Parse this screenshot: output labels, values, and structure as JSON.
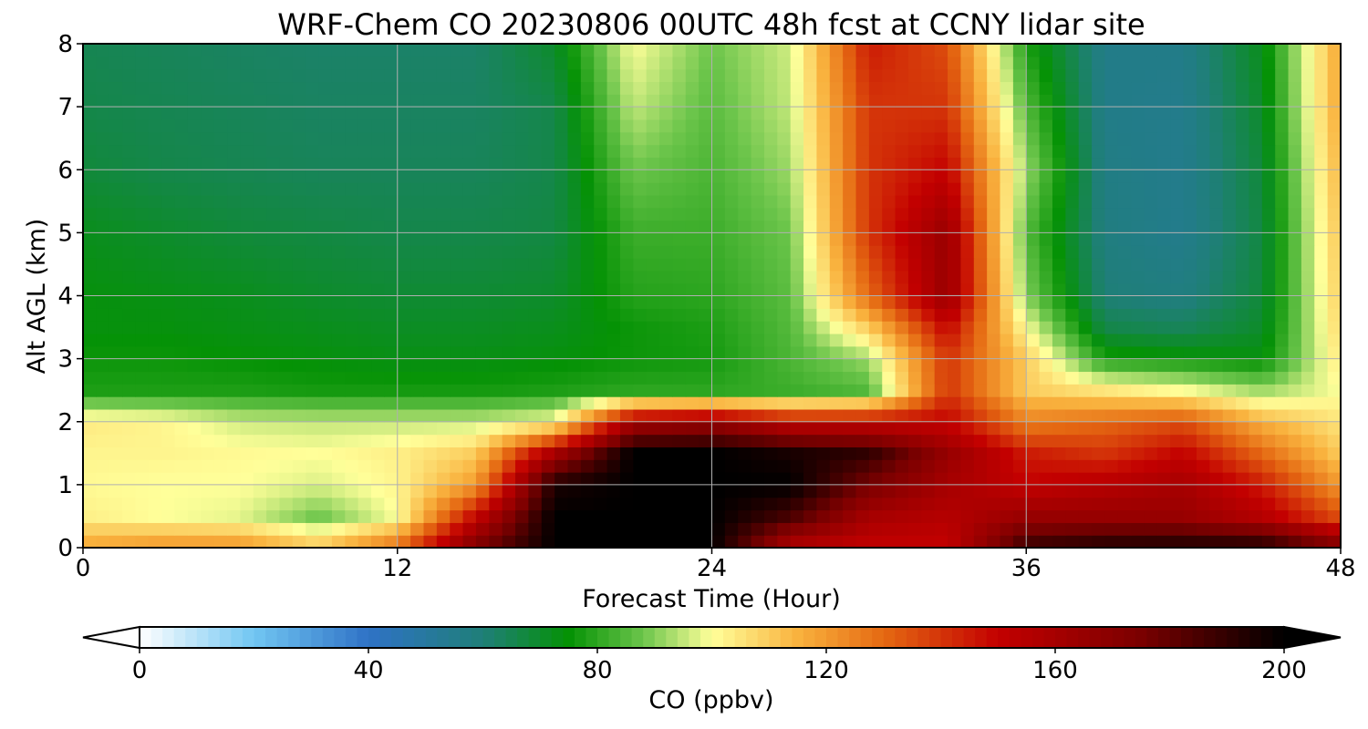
{
  "chart_data": {
    "type": "heatmap",
    "title": "WRF-Chem CO  20230806 00UTC 48h fcst at CCNY lidar site",
    "xlabel": "Forecast Time (Hour)",
    "ylabel": "Alt AGL (km)",
    "xlim": [
      0,
      48
    ],
    "ylim": [
      0,
      8
    ],
    "xticks": [
      0,
      12,
      24,
      36,
      48
    ],
    "yticks": [
      0,
      1,
      2,
      3,
      4,
      5,
      6,
      7,
      8
    ],
    "grid": true,
    "x": [
      0,
      3,
      6,
      9,
      12,
      15,
      18,
      21,
      24,
      27,
      30,
      33,
      36,
      39,
      42,
      45,
      48
    ],
    "y": [
      0,
      0.5,
      1,
      1.5,
      2,
      2.5,
      3,
      3.5,
      4,
      5,
      6,
      7,
      8
    ],
    "values": [
      [
        118,
        122,
        122,
        112,
        130,
        175,
        200,
        200,
        200,
        155,
        150,
        150,
        190,
        195,
        196,
        196,
        175
      ],
      [
        103,
        100,
        98,
        88,
        100,
        150,
        200,
        200,
        200,
        185,
        160,
        155,
        165,
        165,
        165,
        155,
        135
      ],
      [
        101,
        100,
        100,
        97,
        102,
        120,
        195,
        200,
        200,
        200,
        175,
        160,
        150,
        155,
        160,
        145,
        120
      ],
      [
        102,
        102,
        101,
        100,
        103,
        110,
        160,
        200,
        200,
        195,
        190,
        165,
        145,
        140,
        150,
        130,
        110
      ],
      [
        104,
        102,
        96,
        95,
        95,
        95,
        100,
        160,
        165,
        150,
        150,
        150,
        125,
        130,
        135,
        115,
        105
      ],
      [
        78,
        78,
        78,
        77,
        77,
        77,
        78,
        80,
        80,
        82,
        85,
        140,
        110,
        105,
        100,
        92,
        100
      ],
      [
        76,
        76,
        75,
        74,
        73,
        73,
        74,
        76,
        77,
        84,
        92,
        140,
        110,
        78,
        76,
        74,
        105
      ],
      [
        74,
        74,
        73,
        72,
        71,
        71,
        72,
        76,
        78,
        85,
        110,
        150,
        100,
        66,
        64,
        70,
        108
      ],
      [
        74,
        73,
        72,
        70,
        69,
        69,
        70,
        79,
        80,
        86,
        130,
        165,
        90,
        60,
        58,
        68,
        110
      ],
      [
        72,
        70,
        68,
        67,
        66,
        66,
        67,
        82,
        82,
        88,
        140,
        165,
        85,
        58,
        55,
        67,
        112
      ],
      [
        68,
        66,
        65,
        64,
        64,
        64,
        66,
        88,
        84,
        92,
        140,
        150,
        92,
        57,
        55,
        68,
        115
      ],
      [
        66,
        65,
        64,
        63,
        63,
        63,
        66,
        95,
        86,
        95,
        140,
        140,
        85,
        56,
        55,
        70,
        118
      ],
      [
        65,
        64,
        63,
        62,
        62,
        62,
        70,
        100,
        88,
        96,
        145,
        135,
        78,
        56,
        56,
        72,
        118
      ]
    ],
    "colorbar": {
      "label": "CO  (ppbv)",
      "min": 0,
      "max": 200,
      "ticks": [
        0,
        40,
        80,
        120,
        160,
        200
      ],
      "extend": "both",
      "stops": [
        {
          "v": 0,
          "c": "#ffffff"
        },
        {
          "v": 20,
          "c": "#71c6f2"
        },
        {
          "v": 40,
          "c": "#2f72c6"
        },
        {
          "v": 60,
          "c": "#1f7f78"
        },
        {
          "v": 75,
          "c": "#059205"
        },
        {
          "v": 88,
          "c": "#6cc54b"
        },
        {
          "v": 100,
          "c": "#ffff9a"
        },
        {
          "v": 115,
          "c": "#f9b23e"
        },
        {
          "v": 130,
          "c": "#e56912"
        },
        {
          "v": 150,
          "c": "#c30000"
        },
        {
          "v": 175,
          "c": "#7a0000"
        },
        {
          "v": 200,
          "c": "#000000"
        }
      ]
    }
  }
}
